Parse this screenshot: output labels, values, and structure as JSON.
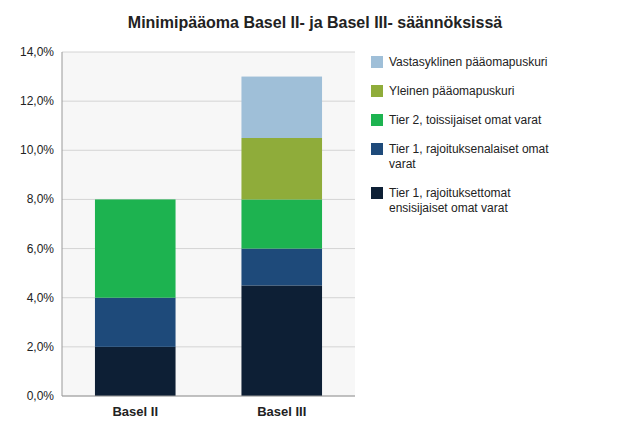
{
  "chart_data": {
    "type": "bar",
    "title": "Minimipääoma Basel II- ja Basel III- säännöksissä",
    "categories": [
      "Basel II",
      "Basel III"
    ],
    "stacked": true,
    "series": [
      {
        "name": "Tier 1, rajoituksettomat\nensisijaiset omat varat",
        "color": "#0d1f35",
        "values": [
          0.02,
          0.045
        ]
      },
      {
        "name": "Tier 1, rajoituksenalaiset omat\nvarat",
        "color": "#1e4a7a",
        "values": [
          0.02,
          0.015
        ]
      },
      {
        "name": "Tier 2, toissijaiset omat varat",
        "color": "#1db350",
        "values": [
          0.04,
          0.02
        ]
      },
      {
        "name": "Yleinen pääomapuskuri",
        "color": "#8fac3a",
        "values": [
          0.0,
          0.025
        ]
      },
      {
        "name": "Vastasyklinen pääomapuskuri",
        "color": "#9fbfd8",
        "values": [
          0.0,
          0.025
        ]
      }
    ],
    "ylim": [
      0,
      0.14
    ],
    "yticks": [
      {
        "value": 0.0,
        "label": "0,0%"
      },
      {
        "value": 0.02,
        "label": "2,0%"
      },
      {
        "value": 0.04,
        "label": "4,0%"
      },
      {
        "value": 0.06,
        "label": "6,0%"
      },
      {
        "value": 0.08,
        "label": "8,0%"
      },
      {
        "value": 0.1,
        "label": "10,0%"
      },
      {
        "value": 0.12,
        "label": "12,0%"
      },
      {
        "value": 0.14,
        "label": "14,0%"
      }
    ],
    "grid": true,
    "legend": "right"
  }
}
